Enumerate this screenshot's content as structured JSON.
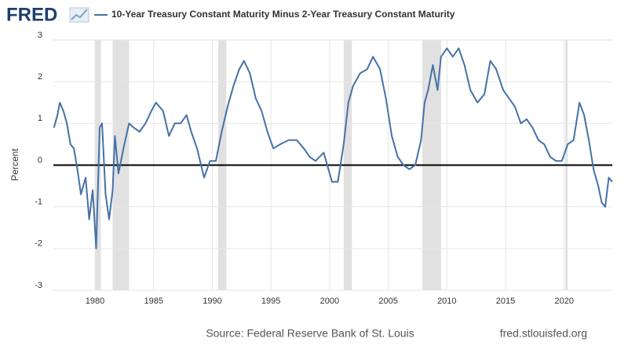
{
  "logo": "FRED",
  "chart_data": {
    "type": "line",
    "series": [
      {
        "name": "10-Year Treasury Constant Maturity Minus 2-Year Treasury Constant Maturity",
        "color": "#4572a7",
        "x": [
          1976.5,
          1976.8,
          1977.0,
          1977.3,
          1977.6,
          1977.9,
          1978.2,
          1978.5,
          1978.8,
          1979.2,
          1979.5,
          1979.8,
          1980.1,
          1980.4,
          1980.6,
          1980.9,
          1981.2,
          1981.5,
          1981.7,
          1982.0,
          1982.5,
          1982.9,
          1983.3,
          1983.8,
          1984.3,
          1984.8,
          1985.2,
          1985.8,
          1986.3,
          1986.8,
          1987.3,
          1987.8,
          1988.2,
          1988.7,
          1989.3,
          1989.8,
          1990.3,
          1990.8,
          1991.3,
          1991.8,
          1992.3,
          1992.7,
          1993.2,
          1993.7,
          1994.2,
          1994.7,
          1995.2,
          1995.8,
          1996.5,
          1997.2,
          1997.8,
          1998.3,
          1998.8,
          1999.5,
          2000.2,
          2000.7,
          2001.2,
          2001.6,
          2002.0,
          2002.6,
          2003.2,
          2003.7,
          2004.3,
          2004.8,
          2005.3,
          2005.8,
          2006.3,
          2006.8,
          2007.3,
          2007.8,
          2008.1,
          2008.4,
          2008.8,
          2009.2,
          2009.5,
          2010.0,
          2010.5,
          2011.0,
          2011.5,
          2012.0,
          2012.6,
          2013.2,
          2013.7,
          2014.2,
          2014.8,
          2015.3,
          2015.8,
          2016.3,
          2016.8,
          2017.3,
          2017.8,
          2018.3,
          2018.8,
          2019.3,
          2019.8,
          2020.3,
          2020.8,
          2021.3,
          2021.7,
          2022.1,
          2022.5,
          2022.9,
          2023.2,
          2023.5,
          2023.8,
          2024.1
        ],
        "values": [
          0.9,
          1.2,
          1.5,
          1.3,
          1.0,
          0.5,
          0.4,
          -0.1,
          -0.7,
          -0.3,
          -1.3,
          -0.6,
          -2.0,
          0.9,
          1.0,
          -0.7,
          -1.3,
          -0.6,
          0.7,
          -0.2,
          0.5,
          1.0,
          0.9,
          0.8,
          1.0,
          1.3,
          1.5,
          1.3,
          0.7,
          1.0,
          1.0,
          1.2,
          0.8,
          0.4,
          -0.3,
          0.1,
          0.1,
          0.8,
          1.4,
          1.9,
          2.3,
          2.5,
          2.2,
          1.6,
          1.3,
          0.8,
          0.4,
          0.5,
          0.6,
          0.6,
          0.4,
          0.2,
          0.1,
          0.3,
          -0.4,
          -0.4,
          0.5,
          1.5,
          1.9,
          2.2,
          2.3,
          2.6,
          2.3,
          1.6,
          0.7,
          0.2,
          0.0,
          -0.1,
          0.0,
          0.6,
          1.5,
          1.8,
          2.4,
          1.8,
          2.6,
          2.8,
          2.6,
          2.8,
          2.4,
          1.8,
          1.5,
          1.7,
          2.5,
          2.3,
          1.8,
          1.6,
          1.4,
          1.0,
          1.1,
          0.9,
          0.6,
          0.5,
          0.2,
          0.1,
          0.1,
          0.5,
          0.6,
          1.5,
          1.2,
          0.6,
          -0.1,
          -0.5,
          -0.9,
          -1.0,
          -0.3,
          -0.4
        ]
      }
    ],
    "recessions": [
      [
        1980.0,
        1980.5
      ],
      [
        1981.5,
        1982.9
      ],
      [
        1990.5,
        1991.2
      ],
      [
        2001.2,
        2001.9
      ],
      [
        2007.9,
        2009.5
      ],
      [
        2020.1,
        2020.3
      ]
    ],
    "recession_color": "#e1e1e1",
    "ylabel": "Percent",
    "xlim": [
      1976.45,
      2024.1
    ],
    "ylim": [
      -3,
      3
    ],
    "xticks": [
      1980,
      1985,
      1990,
      1995,
      2000,
      2005,
      2010,
      2015,
      2020
    ],
    "yticks": [
      -3,
      -2,
      -1,
      0,
      1,
      2,
      3
    ],
    "grid": true,
    "source": "Source: Federal Reserve Bank of St. Louis",
    "site": "fred.stlouisfed.org"
  }
}
